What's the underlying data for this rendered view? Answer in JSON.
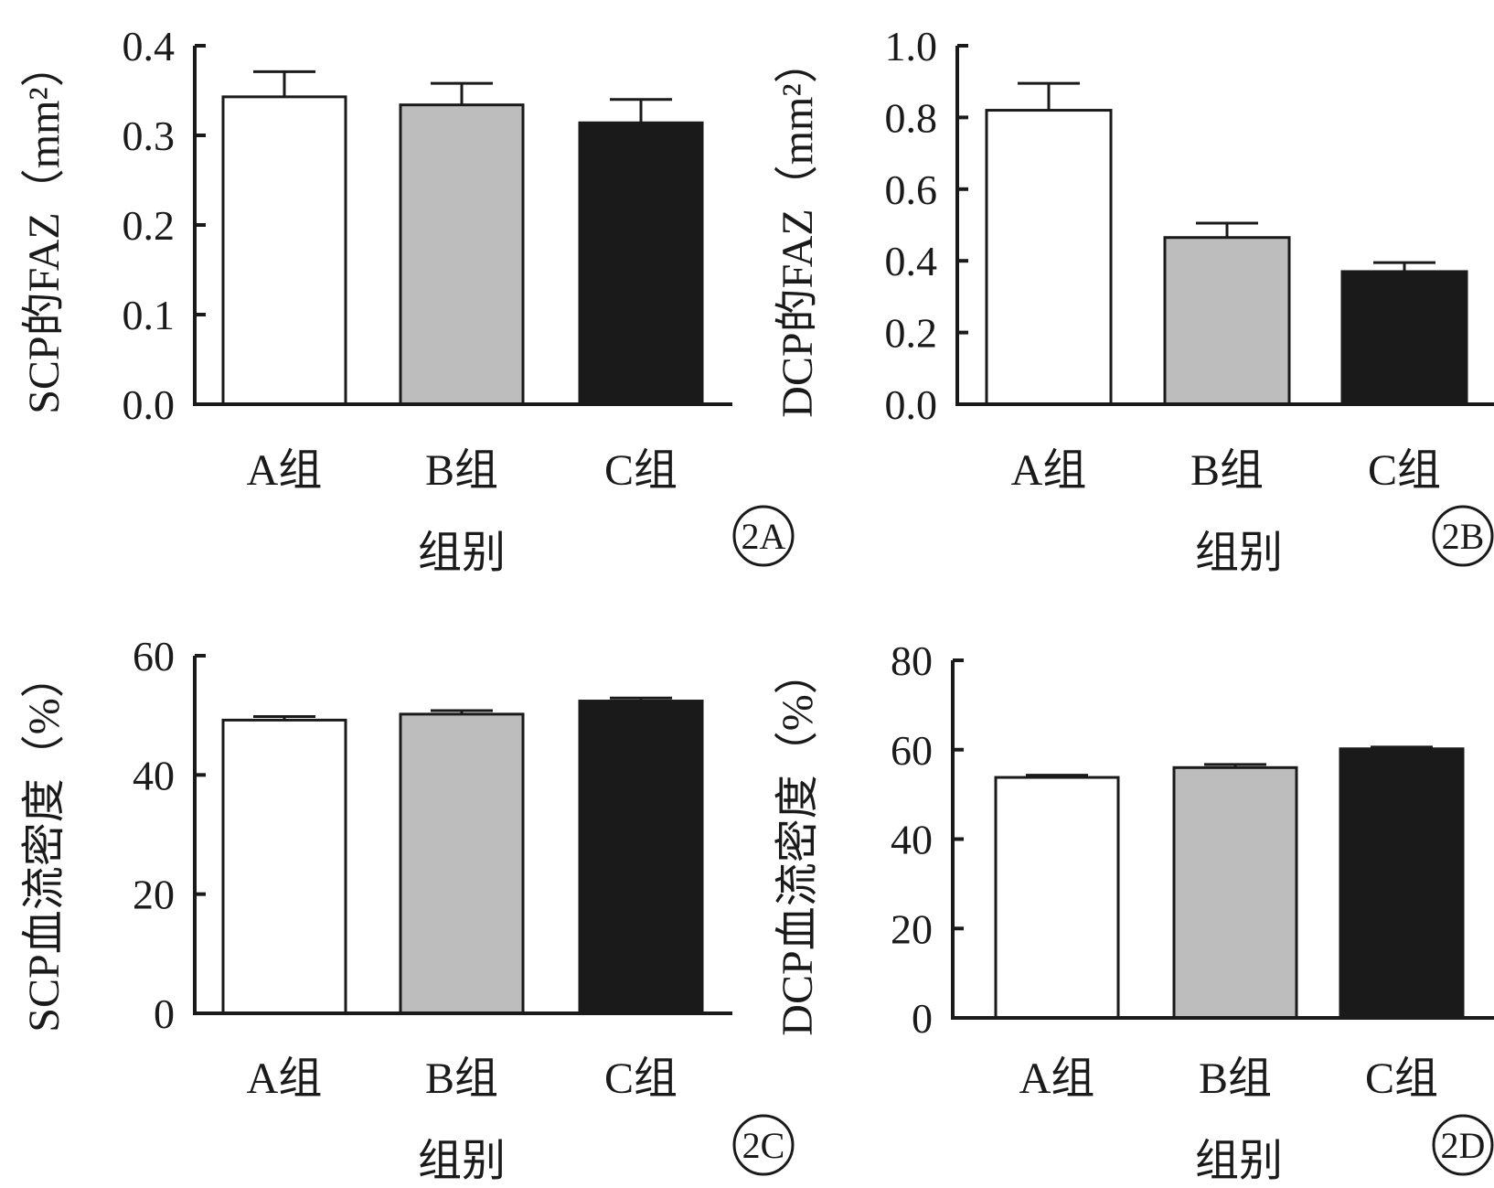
{
  "colors": {
    "A组": "#ffffff",
    "B组": "#bdbdbd",
    "C组": "#1a1a1a",
    "outline": "#1a1a1a"
  },
  "chart_data": [
    {
      "panel": "2A",
      "type": "bar",
      "categories": [
        "A组",
        "B组",
        "C组"
      ],
      "values": [
        0.343,
        0.334,
        0.314
      ],
      "errors": [
        0.028,
        0.024,
        0.026
      ],
      "ylim": [
        0,
        0.4
      ],
      "yticks": [
        0.0,
        0.1,
        0.2,
        0.3,
        0.4
      ],
      "ytick_labels": [
        "0.0",
        "0.1",
        "0.2",
        "0.3",
        "0.4"
      ],
      "ylabel": "SCP的FAZ（mm²）",
      "xlabel": "组别",
      "grid": false
    },
    {
      "panel": "2B",
      "type": "bar",
      "categories": [
        "A组",
        "B组",
        "C组"
      ],
      "values": [
        0.82,
        0.465,
        0.37
      ],
      "errors": [
        0.075,
        0.04,
        0.025
      ],
      "ylim": [
        0,
        1.0
      ],
      "yticks": [
        0.0,
        0.2,
        0.4,
        0.6,
        0.8,
        1.0
      ],
      "ytick_labels": [
        "0.0",
        "0.2",
        "0.4",
        "0.6",
        "0.8",
        "1.0"
      ],
      "ylabel": "DCP的FAZ（mm²）",
      "xlabel": "组别",
      "grid": false
    },
    {
      "panel": "2C",
      "type": "bar",
      "categories": [
        "A组",
        "B组",
        "C组"
      ],
      "values": [
        49.2,
        50.2,
        52.4
      ],
      "errors": [
        0.6,
        0.6,
        0.5
      ],
      "ylim": [
        0,
        60
      ],
      "yticks": [
        0,
        20,
        40,
        60
      ],
      "ytick_labels": [
        "0",
        "20",
        "40",
        "60"
      ],
      "ylabel": "SCP血流密度（%）",
      "xlabel": "组别",
      "grid": false
    },
    {
      "panel": "2D",
      "type": "bar",
      "categories": [
        "A组",
        "B组",
        "C组"
      ],
      "values": [
        53.8,
        56.0,
        60.2
      ],
      "errors": [
        0.5,
        0.7,
        0.4
      ],
      "ylim": [
        0,
        80
      ],
      "yticks": [
        0,
        20,
        40,
        60,
        80
      ],
      "ytick_labels": [
        "0",
        "20",
        "40",
        "60",
        "80"
      ],
      "ylabel": "DCP血流密度（%）",
      "xlabel": "组别",
      "grid": false
    }
  ]
}
